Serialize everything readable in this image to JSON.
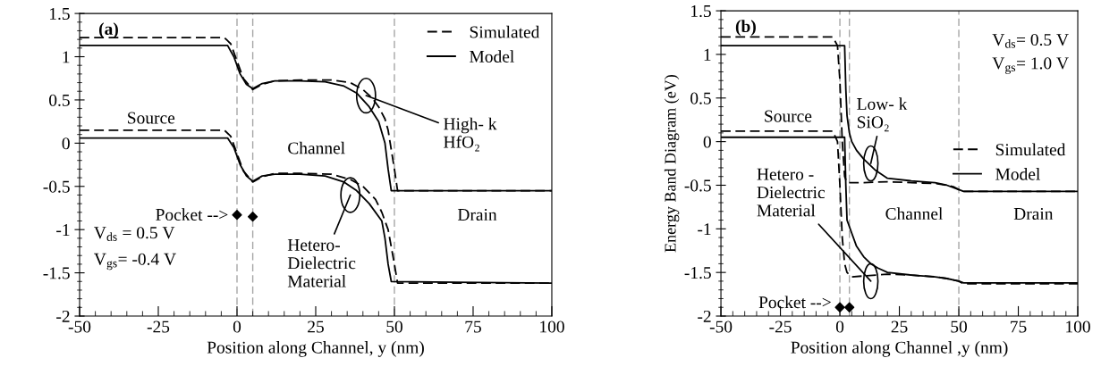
{
  "chart_data": [
    {
      "type": "line",
      "title": "(a)",
      "xlabel": "Position along Channel, y (nm)",
      "xlim": [
        -50,
        100
      ],
      "xticks": [
        -50,
        -25,
        0,
        25,
        50,
        75,
        100
      ],
      "ylim": [
        -2,
        1.5
      ],
      "yticks": [
        -2,
        -1.5,
        -1,
        -0.5,
        0,
        0.5,
        1,
        1.5
      ],
      "grid": false,
      "legend": "top right",
      "series": [
        {
          "name": "Simulated",
          "color": "#000000",
          "line_style": "dashed",
          "x": [
            -50,
            -4,
            -2,
            0,
            2,
            5,
            8,
            12,
            20,
            30,
            36,
            40,
            43,
            45,
            47,
            48,
            50,
            51,
            100
          ],
          "values": [
            1.22,
            1.22,
            1.15,
            0.95,
            0.75,
            0.62,
            0.68,
            0.72,
            0.73,
            0.73,
            0.7,
            0.62,
            0.52,
            0.42,
            0.28,
            0.15,
            -0.3,
            -0.55,
            -0.55
          ]
        },
        {
          "name": "Model",
          "color": "#000000",
          "line_style": "solid",
          "x": [
            -50,
            -3,
            -1,
            1,
            3,
            5,
            8,
            12,
            20,
            28,
            34,
            38,
            42,
            45,
            47,
            48,
            49,
            100
          ],
          "values": [
            1.13,
            1.13,
            1.0,
            0.8,
            0.68,
            0.63,
            0.69,
            0.72,
            0.72,
            0.71,
            0.66,
            0.58,
            0.42,
            0.25,
            0.0,
            -0.3,
            -0.55,
            -0.55
          ]
        },
        {
          "color": "#000000",
          "line_style": "dashed",
          "x": [
            -50,
            -4,
            -2,
            0,
            2,
            5,
            8,
            12,
            20,
            30,
            36,
            40,
            44,
            46,
            48,
            50,
            51,
            100
          ],
          "values": [
            0.15,
            0.15,
            0.08,
            -0.12,
            -0.32,
            -0.45,
            -0.39,
            -0.35,
            -0.35,
            -0.36,
            -0.42,
            -0.5,
            -0.65,
            -0.8,
            -1.0,
            -1.4,
            -1.62,
            -1.62
          ]
        },
        {
          "color": "#000000",
          "line_style": "solid",
          "x": [
            -50,
            -3,
            -1,
            1,
            3,
            5,
            8,
            12,
            20,
            28,
            34,
            38,
            42,
            46,
            47,
            48,
            49,
            100
          ],
          "values": [
            0.06,
            0.06,
            -0.05,
            -0.25,
            -0.38,
            -0.44,
            -0.38,
            -0.36,
            -0.36,
            -0.38,
            -0.45,
            -0.55,
            -0.7,
            -0.9,
            -1.1,
            -1.4,
            -1.6,
            -1.62
          ]
        },
        {
          "type": "scatter",
          "color": "#000000",
          "marker": "diamond",
          "x": [
            0,
            5
          ],
          "values": [
            -0.83,
            -0.85
          ]
        }
      ],
      "ref_lines": [
        {
          "axis": "x",
          "value": 0,
          "color": "#a6a6a6",
          "line_style": "dashed"
        },
        {
          "axis": "x",
          "value": 5,
          "color": "#a6a6a6",
          "line_style": "dashed"
        },
        {
          "axis": "x",
          "value": 50,
          "color": "#a6a6a6",
          "line_style": "dashed"
        }
      ],
      "annotations": [
        "Source",
        "Channel",
        "Drain",
        {
          "text": "High- k\nHfO₂",
          "x": 41,
          "y": 0.55
        },
        {
          "text": "Hetero-\nDielectric\nMaterial",
          "x": 36,
          "y": -0.6
        },
        "Pocket -->",
        "V$_{ds}$ = 0.5 V",
        "V$_{gs}$= -0.4 V"
      ]
    },
    {
      "type": "line",
      "title": "(b)",
      "xlabel": "Position along Channel ,y (nm)",
      "ylabel": "Energy Band Diagram (eV)",
      "xlim": [
        -50,
        100
      ],
      "xticks": [
        -50,
        -25,
        0,
        25,
        50,
        75,
        100
      ],
      "ylim": [
        -2,
        1.5
      ],
      "yticks": [
        -2,
        -1.5,
        -1,
        -0.5,
        0,
        0.5,
        1,
        1.5
      ],
      "grid": false,
      "legend": "right",
      "series": [
        {
          "name": "Simulated",
          "color": "#000000",
          "line_style": "dashed",
          "x": [
            -50,
            -3,
            -1,
            0,
            1,
            2,
            3,
            5,
            10,
            20,
            30,
            40,
            45,
            48,
            50,
            51,
            100
          ],
          "values": [
            1.2,
            1.2,
            1.1,
            0.7,
            0.0,
            -0.4,
            -0.47,
            -0.47,
            -0.47,
            -0.46,
            -0.47,
            -0.48,
            -0.5,
            -0.52,
            -0.55,
            -0.57,
            -0.57
          ]
        },
        {
          "name": "Model",
          "color": "#000000",
          "line_style": "solid",
          "x": [
            -50,
            1,
            2,
            2.5,
            3,
            4,
            5,
            7,
            10,
            15,
            20,
            30,
            40,
            45,
            50,
            52,
            100
          ],
          "values": [
            1.1,
            1.1,
            1.1,
            0.6,
            0.3,
            0.1,
            0.0,
            -0.1,
            -0.2,
            -0.33,
            -0.42,
            -0.45,
            -0.47,
            -0.5,
            -0.55,
            -0.57,
            -0.57
          ]
        },
        {
          "color": "#000000",
          "line_style": "dashed",
          "x": [
            -50,
            -3,
            -1,
            0,
            1,
            2,
            3,
            5,
            10,
            20,
            30,
            40,
            45,
            50,
            52,
            100
          ],
          "values": [
            0.12,
            0.12,
            0.0,
            -0.5,
            -1.1,
            -1.4,
            -1.5,
            -1.55,
            -1.54,
            -1.52,
            -1.53,
            -1.55,
            -1.57,
            -1.6,
            -1.63,
            -1.63
          ]
        },
        {
          "color": "#000000",
          "line_style": "solid",
          "x": [
            -50,
            1,
            2,
            2.5,
            3,
            5,
            7,
            10,
            13,
            16,
            20,
            30,
            40,
            45,
            50,
            52,
            100
          ],
          "values": [
            0.05,
            0.05,
            0.05,
            -0.5,
            -0.9,
            -1.05,
            -1.2,
            -1.32,
            -1.4,
            -1.45,
            -1.5,
            -1.53,
            -1.55,
            -1.57,
            -1.6,
            -1.62,
            -1.62
          ]
        },
        {
          "type": "scatter",
          "color": "#000000",
          "marker": "diamond",
          "x": [
            0,
            4
          ],
          "values": [
            -1.9,
            -1.9
          ]
        }
      ],
      "ref_lines": [
        {
          "axis": "x",
          "value": 0,
          "color": "#a6a6a6",
          "line_style": "dashed"
        },
        {
          "axis": "x",
          "value": 4,
          "color": "#a6a6a6",
          "line_style": "dashed"
        },
        {
          "axis": "x",
          "value": 50,
          "color": "#a6a6a6",
          "line_style": "dashed"
        }
      ],
      "annotations": [
        "Source",
        "Channel",
        "Drain",
        {
          "text": "Low- k\nSiO₂",
          "x": 13,
          "y": -0.25
        },
        {
          "text": "Hetero -\nDielectric\nMaterial",
          "x": 13,
          "y": -1.6
        },
        "Pocket -->",
        "V$_{ds}$= 0.5 V",
        "V$_{gs}$= 1.0 V"
      ]
    }
  ]
}
